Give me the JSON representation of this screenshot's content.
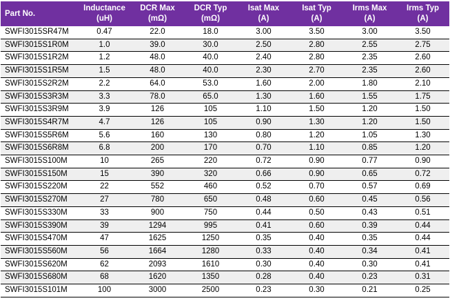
{
  "colors": {
    "header_bg": "#7030A0",
    "header_text": "#FFFFFF",
    "stripe_bg": "#EFEFEF",
    "row_border": "#000000"
  },
  "table": {
    "columns": [
      {
        "label": "Part No.",
        "unit": ""
      },
      {
        "label": "Inductance",
        "unit": "(uH)"
      },
      {
        "label": "DCR Max",
        "unit": "(mΩ)"
      },
      {
        "label": "DCR Typ",
        "unit": "(mΩ)"
      },
      {
        "label": "Isat Max",
        "unit": "(A)"
      },
      {
        "label": "Isat Typ",
        "unit": "(A)"
      },
      {
        "label": "Irms Max",
        "unit": "(A)"
      },
      {
        "label": "Irms Typ",
        "unit": "(A)"
      }
    ],
    "rows": [
      [
        "SWFI3015SR47M",
        "0.47",
        "22.0",
        "18.0",
        "3.00",
        "3.50",
        "3.00",
        "3.50"
      ],
      [
        "SWFI3015S1R0M",
        "1.0",
        "39.0",
        "30.0",
        "2.50",
        "2.80",
        "2.55",
        "2.75"
      ],
      [
        "SWFI3015S1R2M",
        "1.2",
        "48.0",
        "40.0",
        "2.40",
        "2.80",
        "2.35",
        "2.60"
      ],
      [
        "SWFI3015S1R5M",
        "1.5",
        "48.0",
        "40.0",
        "2.30",
        "2.70",
        "2.35",
        "2.60"
      ],
      [
        "SWFI3015S2R2M",
        "2.2",
        "64.0",
        "53.0",
        "1.60",
        "2.00",
        "1.80",
        "2.10"
      ],
      [
        "SWFI3015S3R3M",
        "3.3",
        "78.0",
        "65.0",
        "1.30",
        "1.60",
        "1.55",
        "1.75"
      ],
      [
        "SWFI3015S3R9M",
        "3.9",
        "126",
        "105",
        "1.10",
        "1.50",
        "1.20",
        "1.50"
      ],
      [
        "SWFI3015S4R7M",
        "4.7",
        "126",
        "105",
        "0.90",
        "1.30",
        "1.20",
        "1.50"
      ],
      [
        "SWFI3015S5R6M",
        "5.6",
        "160",
        "130",
        "0.80",
        "1.20",
        "1.05",
        "1.30"
      ],
      [
        "SWFI3015S6R8M",
        "6.8",
        "200",
        "170",
        "0.70",
        "1.10",
        "0.85",
        "1.20"
      ],
      [
        "SWFI3015S100M",
        "10",
        "265",
        "220",
        "0.72",
        "0.90",
        "0.77",
        "0.90"
      ],
      [
        "SWFI3015S150M",
        "15",
        "390",
        "320",
        "0.66",
        "0.90",
        "0.65",
        "0.72"
      ],
      [
        "SWFI3015S220M",
        "22",
        "552",
        "460",
        "0.52",
        "0.70",
        "0.57",
        "0.69"
      ],
      [
        "SWFI3015S270M",
        "27",
        "780",
        "650",
        "0.48",
        "0.60",
        "0.45",
        "0.56"
      ],
      [
        "SWFI3015S330M",
        "33",
        "900",
        "750",
        "0.44",
        "0.50",
        "0.43",
        "0.51"
      ],
      [
        "SWFI3015S390M",
        "39",
        "1294",
        "995",
        "0.41",
        "0.60",
        "0.39",
        "0.44"
      ],
      [
        "SWFI3015S470M",
        "47",
        "1625",
        "1250",
        "0.35",
        "0.40",
        "0.35",
        "0.44"
      ],
      [
        "SWFI3015S560M",
        "56",
        "1664",
        "1280",
        "0.33",
        "0.40",
        "0.34",
        "0.41"
      ],
      [
        "SWFI3015S620M",
        "62",
        "2093",
        "1610",
        "0.30",
        "0.40",
        "0.30",
        "0.41"
      ],
      [
        "SWFI3015S680M",
        "68",
        "1620",
        "1350",
        "0.28",
        "0.40",
        "0.23",
        "0.31"
      ],
      [
        "SWFI3015S101M",
        "100",
        "3000",
        "2500",
        "0.23",
        "0.30",
        "0.21",
        "0.25"
      ]
    ]
  }
}
